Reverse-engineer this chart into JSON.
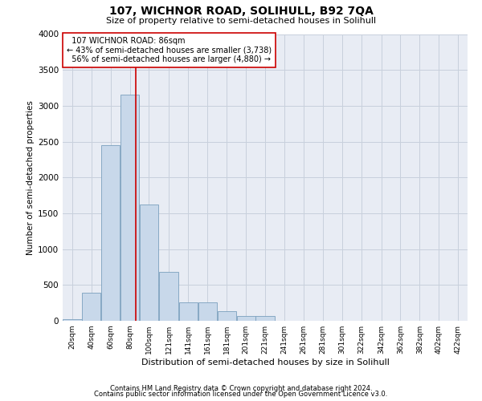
{
  "title1": "107, WICHNOR ROAD, SOLIHULL, B92 7QA",
  "title2": "Size of property relative to semi-detached houses in Solihull",
  "xlabel": "Distribution of semi-detached houses by size in Solihull",
  "ylabel": "Number of semi-detached properties",
  "footnote1": "Contains HM Land Registry data © Crown copyright and database right 2024.",
  "footnote2": "Contains public sector information licensed under the Open Government Licence v3.0.",
  "property_size": 86,
  "property_label": "107 WICHNOR ROAD: 86sqm",
  "smaller_pct": 43,
  "smaller_count": 3738,
  "larger_pct": 56,
  "larger_count": 4880,
  "bin_labels": [
    "20sqm",
    "40sqm",
    "60sqm",
    "80sqm",
    "100sqm",
    "121sqm",
    "141sqm",
    "161sqm",
    "181sqm",
    "201sqm",
    "221sqm",
    "241sqm",
    "261sqm",
    "281sqm",
    "301sqm",
    "322sqm",
    "342sqm",
    "362sqm",
    "382sqm",
    "402sqm",
    "422sqm"
  ],
  "bin_edges": [
    10,
    30,
    50,
    70,
    90,
    110,
    131,
    151,
    171,
    191,
    211,
    231,
    251,
    271,
    291,
    311,
    332,
    352,
    372,
    392,
    412,
    432
  ],
  "bar_values": [
    20,
    390,
    2450,
    3150,
    1620,
    680,
    260,
    260,
    130,
    65,
    65,
    0,
    0,
    0,
    0,
    0,
    0,
    0,
    0,
    0,
    0
  ],
  "bar_color": "#c8d8ea",
  "bar_edge_color": "#7aa0be",
  "property_line_color": "#cc0000",
  "annotation_box_color": "#ffffff",
  "annotation_box_edge": "#cc0000",
  "grid_color": "#c8d0dc",
  "background_color": "#e8ecf4",
  "ylim": [
    0,
    4000
  ],
  "yticks": [
    0,
    500,
    1000,
    1500,
    2000,
    2500,
    3000,
    3500,
    4000
  ]
}
